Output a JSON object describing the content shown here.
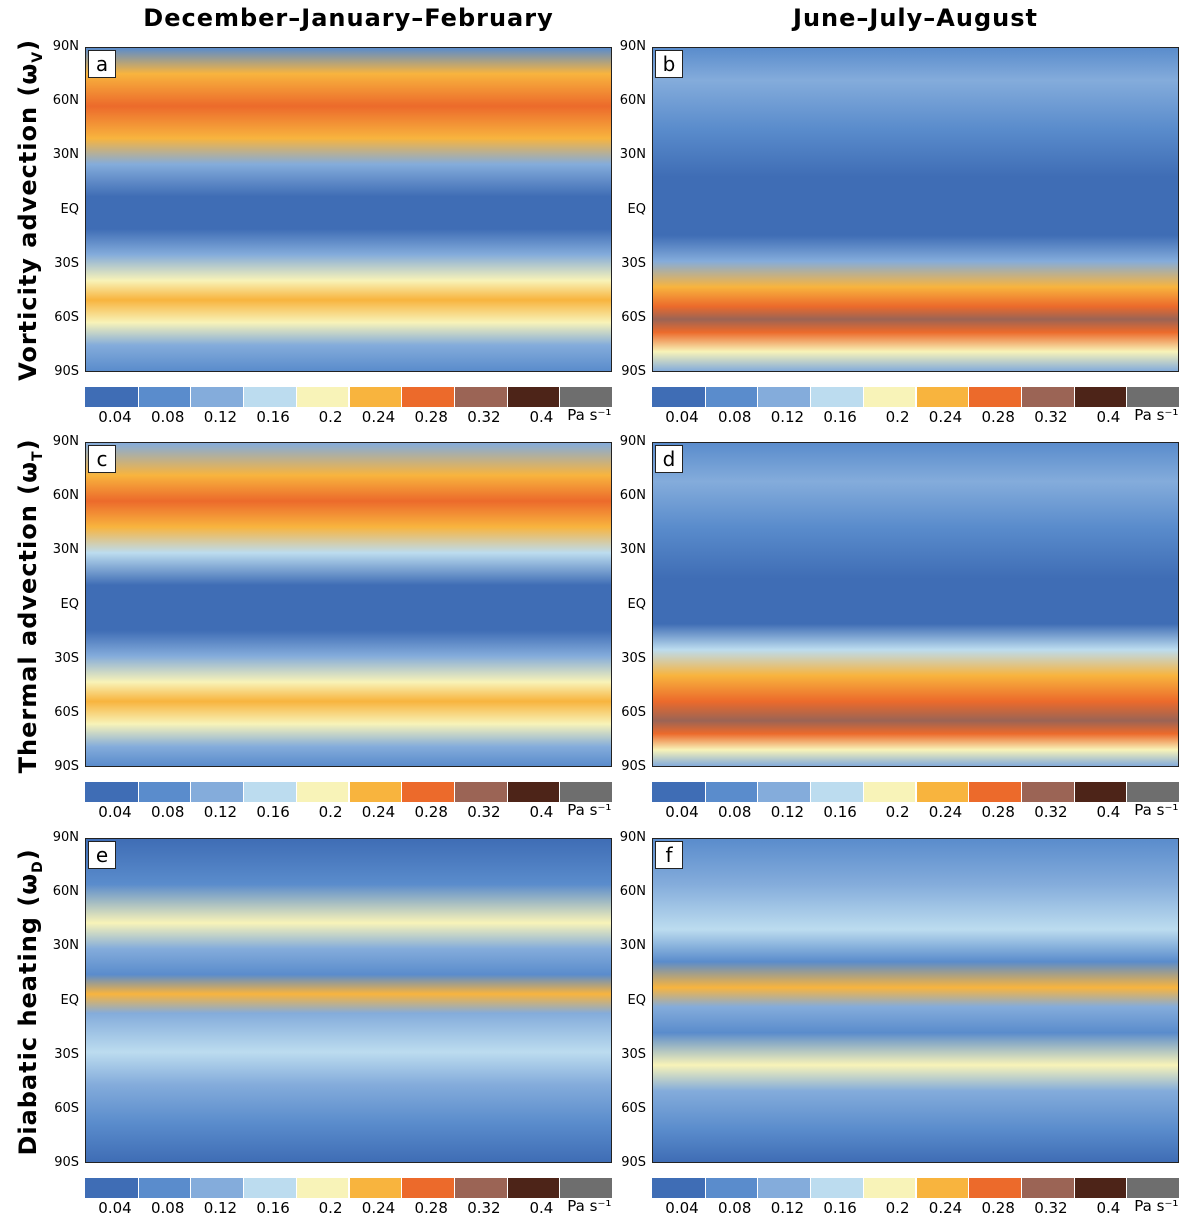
{
  "columns": [
    "December–January–February",
    "June–July–August"
  ],
  "rows": [
    {
      "label": "Vorticity advection (ω",
      "sub": "V",
      "close": ")",
      "panels": [
        "a",
        "b"
      ]
    },
    {
      "label": "Thermal advection (ω",
      "sub": "T",
      "close": ")",
      "panels": [
        "c",
        "d"
      ]
    },
    {
      "label": "Diabatic heating (ω",
      "sub": "D",
      "close": ")",
      "panels": [
        "e",
        "f"
      ]
    }
  ],
  "lat_labels": [
    "90N",
    "60N",
    "30N",
    "EQ",
    "30S",
    "60S",
    "90S"
  ],
  "colorbar": {
    "colors": [
      "#3f6db5",
      "#5a8ccc",
      "#84acdb",
      "#bcdcef",
      "#f8f3b8",
      "#f8b43e",
      "#ec6a2b",
      "#9b6455",
      "#4d2418",
      "#6e6e6e"
    ],
    "ticks": [
      0.04,
      0.08,
      0.12,
      0.16,
      0.2,
      0.24,
      0.28,
      0.32,
      0.4
    ],
    "unit": "Pa  s⁻¹"
  }
}
